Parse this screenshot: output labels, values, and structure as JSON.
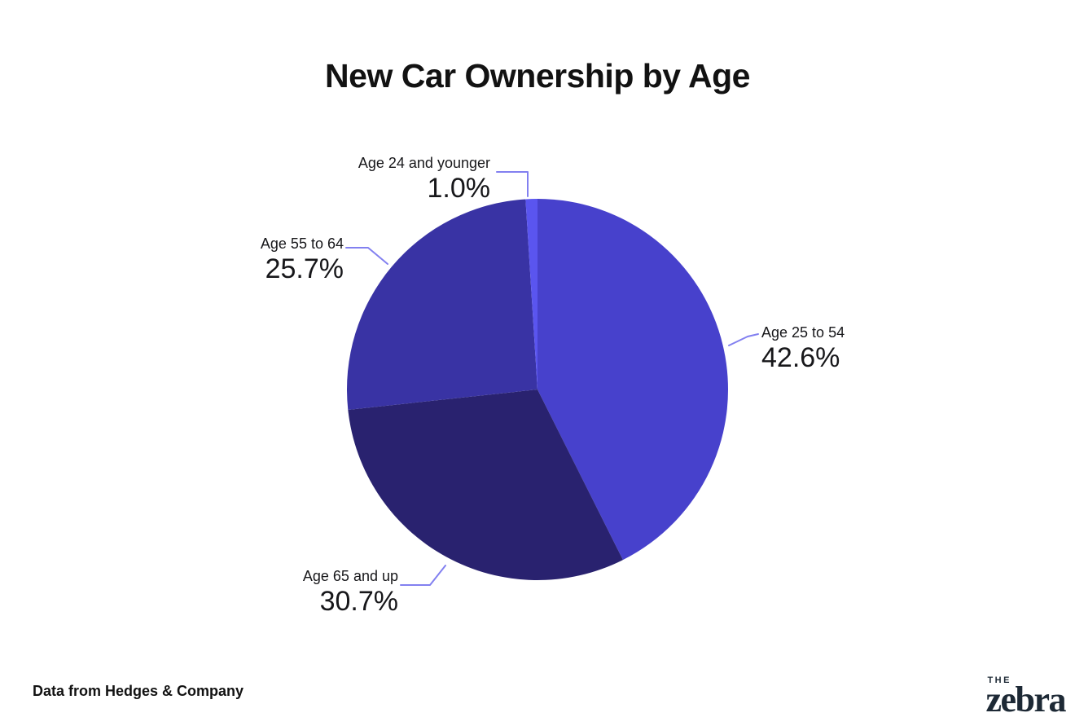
{
  "title": "New Car Ownership by Age",
  "source_note": "Data from Hedges & Company",
  "logo": {
    "line1": "THE",
    "line2": "zebra"
  },
  "colors": {
    "background": "#ffffff",
    "text": "#17171a",
    "title": "#121212",
    "callout_line": "#8280f0",
    "logo": "#1d2935"
  },
  "chart_data": {
    "type": "pie",
    "title": "New Car Ownership by Age",
    "start_angle_deg": 0,
    "direction": "clockwise",
    "total": 100,
    "legend_position": "callout-labels",
    "slices": [
      {
        "label": "Age 25 to 54",
        "value": 42.6,
        "display": "42.6%",
        "color": "#4741cc"
      },
      {
        "label": "Age 65 and up",
        "value": 30.7,
        "display": "30.7%",
        "color": "#29226f"
      },
      {
        "label": "Age 55 to 64",
        "value": 25.7,
        "display": "25.7%",
        "color": "#3933a4"
      },
      {
        "label": "Age 24 and younger",
        "value": 1.0,
        "display": "1.0%",
        "color": "#5a55ef"
      }
    ]
  }
}
